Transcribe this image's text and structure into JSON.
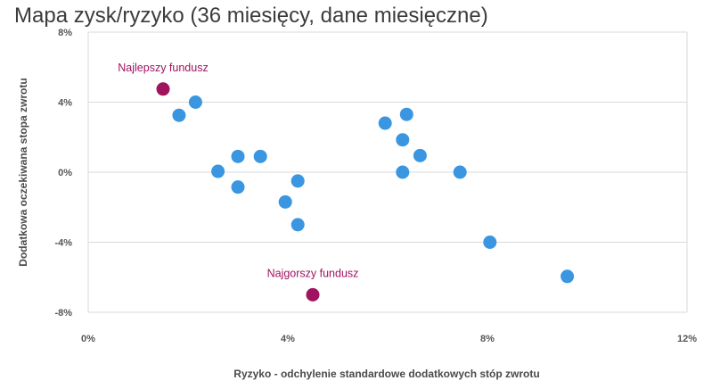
{
  "chart_data": {
    "type": "scatter",
    "title": "Mapa zysk/ryzyko (36 miesięcy, dane miesięczne)",
    "xlabel": "Ryzyko - odchylenie standardowe dodatkowych stóp zwrotu",
    "ylabel": "Dodatkowa oczekiwana stopa zwrotu",
    "xlim": [
      0,
      12
    ],
    "ylim": [
      -8,
      8
    ],
    "x_ticks": [
      0,
      4,
      8,
      12
    ],
    "x_tick_labels": [
      "0%",
      "4%",
      "8%",
      "12%"
    ],
    "y_ticks": [
      8,
      4,
      0,
      -4,
      -8
    ],
    "y_tick_labels": [
      "8%",
      "4%",
      "0%",
      "-4%",
      "-8%"
    ],
    "grid": "horizontal",
    "colors": {
      "funds": "#3a96e0",
      "highlight": "#a0135f",
      "grid": "#d9d9d9"
    },
    "series": [
      {
        "points": [
          {
            "x": 1.82,
            "y": 3.25
          },
          {
            "x": 2.15,
            "y": 4.0
          },
          {
            "x": 2.6,
            "y": 0.05
          },
          {
            "x": 3.0,
            "y": 0.9
          },
          {
            "x": 3.0,
            "y": -0.85
          },
          {
            "x": 3.45,
            "y": 0.9
          },
          {
            "x": 3.95,
            "y": -1.7
          },
          {
            "x": 4.2,
            "y": -0.5
          },
          {
            "x": 4.2,
            "y": -3.0
          },
          {
            "x": 5.95,
            "y": 2.8
          },
          {
            "x": 6.3,
            "y": 1.85
          },
          {
            "x": 6.3,
            "y": 0.0
          },
          {
            "x": 6.38,
            "y": 3.3
          },
          {
            "x": 6.65,
            "y": 0.95
          },
          {
            "x": 7.45,
            "y": 0.0
          },
          {
            "x": 8.05,
            "y": -4.0
          },
          {
            "x": 9.6,
            "y": -5.95
          }
        ]
      },
      {
        "points": [
          {
            "x": 1.5,
            "y": 4.75,
            "label": "Najlepszy fundusz"
          },
          {
            "x": 4.5,
            "y": -7.0,
            "label": "Najgorszy fundusz"
          }
        ]
      }
    ]
  }
}
